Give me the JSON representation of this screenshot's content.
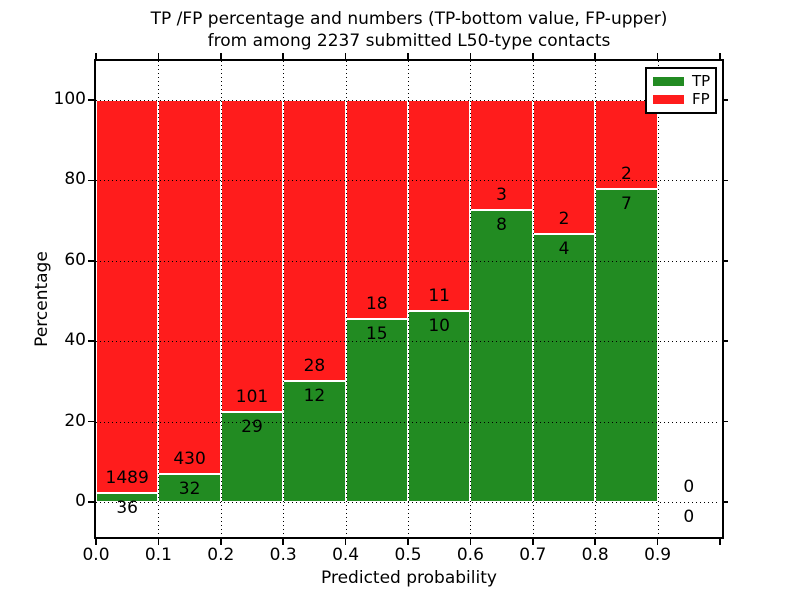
{
  "title": {
    "line1": "TP /FP percentage and numbers (TP-bottom value, FP-upper)",
    "line2": "from among 2237 submitted L50-type contacts"
  },
  "chart_data": {
    "type": "bar",
    "stacked": true,
    "normalized_to_percent": true,
    "title_lines": [
      "TP /FP percentage and numbers (TP-bottom value, FP-upper)",
      "from among 2237 submitted L50-type contacts"
    ],
    "xlabel": "Predicted probability",
    "ylabel": "Percentage",
    "total_submitted": 2237,
    "bin_edges": [
      0.0,
      0.1,
      0.2,
      0.3,
      0.4,
      0.5,
      0.6,
      0.7,
      0.8,
      0.9,
      1.0
    ],
    "x_tick_labels": [
      "0.0",
      "0.1",
      "0.2",
      "0.3",
      "0.4",
      "0.5",
      "0.6",
      "0.7",
      "0.8",
      "0.9"
    ],
    "y_tick_labels": [
      "0",
      "20",
      "40",
      "60",
      "80",
      "100"
    ],
    "y_ticks": [
      0,
      20,
      40,
      60,
      80,
      100
    ],
    "xlim": [
      0.0,
      1.0
    ],
    "ylim": [
      -8.7,
      109.7
    ],
    "grid": true,
    "grid_style": "dotted",
    "legend": {
      "position": "upper right"
    },
    "series": [
      {
        "name": "TP",
        "color": "#228b22",
        "counts": [
          36,
          32,
          29,
          12,
          15,
          10,
          8,
          4,
          7,
          0
        ]
      },
      {
        "name": "FP",
        "color": "#ff1c1c",
        "counts": [
          1489,
          430,
          101,
          28,
          18,
          11,
          3,
          2,
          2,
          0
        ]
      }
    ],
    "tp_percent_of_bin": [
      2.4,
      6.9,
      22.3,
      30.0,
      45.5,
      47.6,
      72.7,
      66.7,
      77.8,
      0.0
    ],
    "colors": {
      "tp": "#228b22",
      "fp": "#ff1c1c",
      "background": "#ffffff",
      "text": "#000000"
    }
  }
}
